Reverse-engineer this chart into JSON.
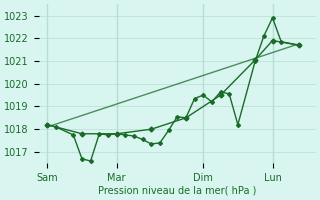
{
  "background_color": "#d8f5ef",
  "grid_color": "#b8ddd5",
  "line_color": "#1a6b2a",
  "xlabel": "Pression niveau de la mer( hPa )",
  "ylim": [
    1016.5,
    1023.5
  ],
  "yticks": [
    1017,
    1018,
    1019,
    1020,
    1021,
    1022,
    1023
  ],
  "day_labels": [
    "Sam",
    "Mar",
    "Dim",
    "Lun"
  ],
  "day_positions": [
    0,
    4,
    9,
    13
  ],
  "vline_positions": [
    0,
    4,
    9,
    13
  ],
  "series1_x": [
    0,
    0.5,
    1.5,
    2.0,
    2.5,
    3.0,
    3.5,
    4.0,
    4.5,
    5.0,
    5.5,
    6.0,
    6.5,
    7.0,
    7.5,
    8.0,
    8.5,
    9.0,
    9.5,
    10.0,
    10.5,
    11.0,
    12.0,
    12.5,
    13.0,
    13.5,
    14.5
  ],
  "series1_y": [
    1018.2,
    1018.1,
    1017.75,
    1016.7,
    1016.6,
    1017.8,
    1017.75,
    1017.8,
    1017.75,
    1017.7,
    1017.55,
    1017.35,
    1017.4,
    1017.95,
    1018.55,
    1018.5,
    1019.35,
    1019.5,
    1019.2,
    1019.65,
    1019.55,
    1018.2,
    1021.0,
    1022.1,
    1022.9,
    1021.85,
    1021.7
  ],
  "series2_x": [
    0,
    2,
    4,
    6,
    8,
    10,
    12,
    13,
    14.5
  ],
  "series2_y": [
    1018.2,
    1017.8,
    1017.8,
    1018.0,
    1018.5,
    1019.5,
    1021.05,
    1021.9,
    1021.7
  ],
  "trend_x": [
    0,
    14.5
  ],
  "trend_y": [
    1018.1,
    1021.75
  ],
  "xlim": [
    -0.5,
    15.5
  ]
}
